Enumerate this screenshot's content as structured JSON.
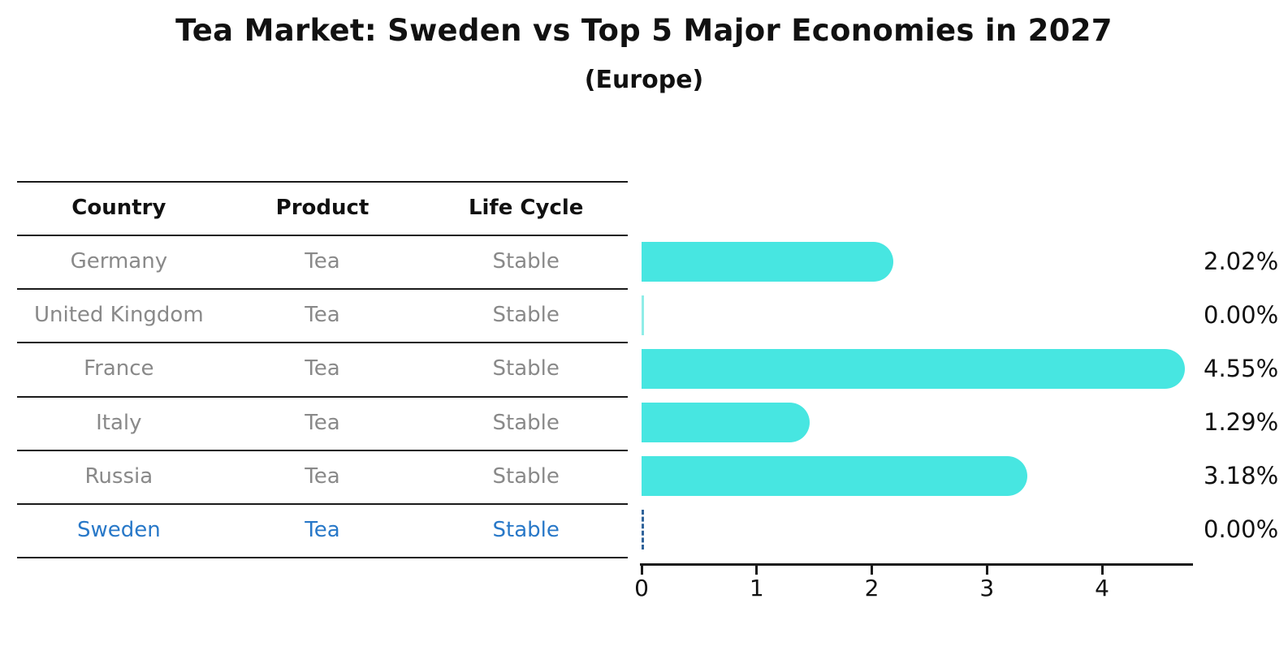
{
  "title": "Tea Market: Sweden vs Top 5 Major Economies in 2027",
  "subtitle": "(Europe)",
  "table": {
    "headers": [
      "Country",
      "Product",
      "Life Cycle"
    ],
    "rows": [
      {
        "country": "Germany",
        "product": "Tea",
        "life_cycle": "Stable",
        "highlight": false
      },
      {
        "country": "United Kingdom",
        "product": "Tea",
        "life_cycle": "Stable",
        "highlight": false
      },
      {
        "country": "France",
        "product": "Tea",
        "life_cycle": "Stable",
        "highlight": false
      },
      {
        "country": "Italy",
        "product": "Tea",
        "life_cycle": "Stable",
        "highlight": false
      },
      {
        "country": "Russia",
        "product": "Tea",
        "life_cycle": "Stable",
        "highlight": false
      },
      {
        "country": "Sweden",
        "product": "Tea",
        "life_cycle": "Stable",
        "highlight": true
      }
    ]
  },
  "chart_data": {
    "type": "bar",
    "orientation": "horizontal",
    "title": "Tea Market: Sweden vs Top 5 Major Economies in 2027",
    "subtitle": "(Europe)",
    "categories": [
      "Germany",
      "United Kingdom",
      "France",
      "Italy",
      "Russia",
      "Sweden"
    ],
    "values": [
      2.02,
      0.0,
      4.55,
      1.29,
      3.18,
      0.0
    ],
    "value_labels": [
      "2.02%",
      "0.00%",
      "4.55%",
      "1.29%",
      "3.18%",
      "0.00%"
    ],
    "xlabel": "",
    "ylabel": "",
    "xticks": [
      0,
      1,
      2,
      3,
      4
    ],
    "xtick_labels": [
      "0",
      "1",
      "2",
      "3",
      "4"
    ],
    "xlim": [
      0,
      4.78
    ],
    "grid": false,
    "legend": false,
    "bar_color": "#47E6E1",
    "zero_bar_color": "#8FEDE8",
    "highlight_category": "Sweden",
    "highlight_text_color": "#2878C8",
    "highlight_zero_dash_color": "#30639A"
  }
}
